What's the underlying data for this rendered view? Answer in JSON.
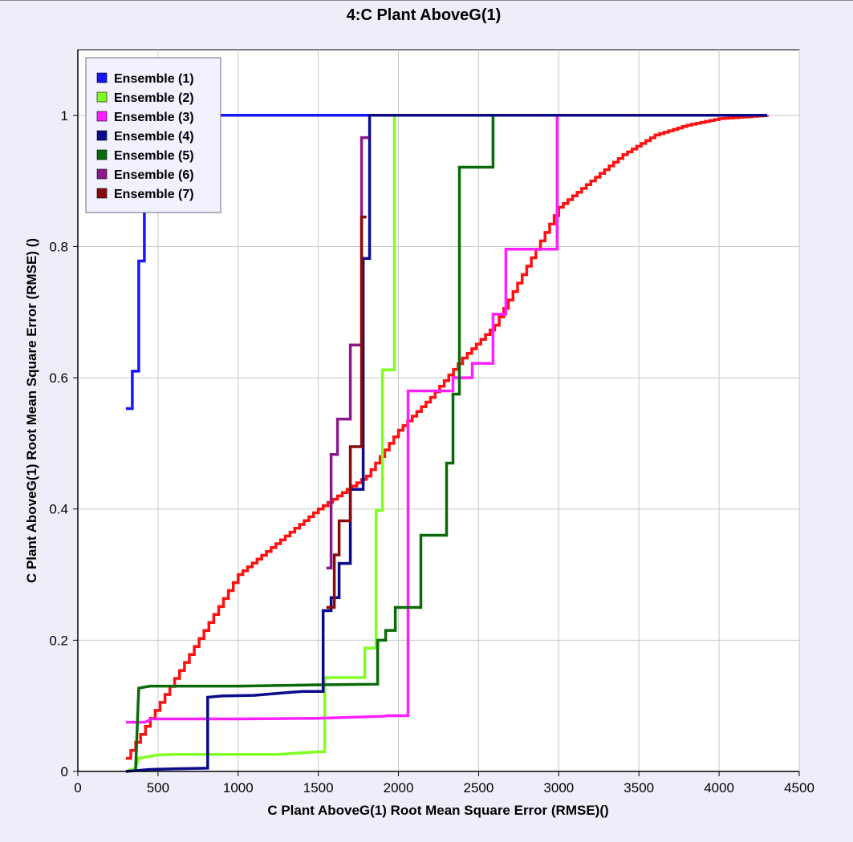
{
  "chart_data": {
    "type": "line",
    "title": "4:C Plant AboveG(1)",
    "xlabel": "C Plant AboveG(1) Root Mean Square Error (RMSE)()",
    "ylabel": "C Plant AboveG(1) Root Mean Square Error (RMSE) ()",
    "xlim": [
      0,
      4500
    ],
    "ylim": [
      0,
      1.1
    ],
    "xticks": [
      "0",
      "500",
      "1000",
      "1500",
      "2000",
      "2500",
      "3000",
      "3500",
      "4000",
      "4500"
    ],
    "yticks": [
      "0",
      "0.2",
      "0.4",
      "0.6",
      "0.8",
      "1"
    ],
    "grid": true,
    "legend_position": "top-left",
    "series": [
      {
        "name": "Ensemble (1)",
        "color": "#1515ff",
        "points": [
          [
            300,
            0.553
          ],
          [
            340,
            0.553
          ],
          [
            340,
            0.61
          ],
          [
            380,
            0.61
          ],
          [
            380,
            0.778
          ],
          [
            415,
            0.778
          ],
          [
            415,
            1.0
          ],
          [
            4300,
            1.0
          ]
        ]
      },
      {
        "name": "Ensemble (2)",
        "color": "#80ff20",
        "points": [
          [
            300,
            0.0
          ],
          [
            360,
            0.005
          ],
          [
            380,
            0.02
          ],
          [
            500,
            0.025
          ],
          [
            600,
            0.026
          ],
          [
            1250,
            0.026
          ],
          [
            1500,
            0.03
          ],
          [
            1540,
            0.03
          ],
          [
            1540,
            0.143
          ],
          [
            1790,
            0.143
          ],
          [
            1790,
            0.188
          ],
          [
            1860,
            0.188
          ],
          [
            1860,
            0.398
          ],
          [
            1900,
            0.398
          ],
          [
            1900,
            0.612
          ],
          [
            1975,
            0.612
          ],
          [
            1975,
            1.0
          ],
          [
            4300,
            1.0
          ]
        ]
      },
      {
        "name": "Ensemble (3)",
        "color": "#ff20ff",
        "points": [
          [
            300,
            0.075
          ],
          [
            420,
            0.075
          ],
          [
            460,
            0.08
          ],
          [
            1000,
            0.08
          ],
          [
            1500,
            0.081
          ],
          [
            1900,
            0.084
          ],
          [
            1940,
            0.085
          ],
          [
            2060,
            0.085
          ],
          [
            2060,
            0.58
          ],
          [
            2340,
            0.58
          ],
          [
            2340,
            0.6
          ],
          [
            2460,
            0.6
          ],
          [
            2460,
            0.622
          ],
          [
            2590,
            0.622
          ],
          [
            2590,
            0.697
          ],
          [
            2670,
            0.697
          ],
          [
            2670,
            0.796
          ],
          [
            2990,
            0.796
          ],
          [
            2990,
            1.0
          ],
          [
            4300,
            1.0
          ]
        ]
      },
      {
        "name": "Ensemble (4)",
        "color": "#0a0a8a",
        "points": [
          [
            300,
            0.0
          ],
          [
            450,
            0.003
          ],
          [
            600,
            0.004
          ],
          [
            810,
            0.005
          ],
          [
            810,
            0.113
          ],
          [
            900,
            0.115
          ],
          [
            1100,
            0.116
          ],
          [
            1300,
            0.12
          ],
          [
            1400,
            0.122
          ],
          [
            1530,
            0.122
          ],
          [
            1530,
            0.245
          ],
          [
            1580,
            0.245
          ],
          [
            1580,
            0.265
          ],
          [
            1630,
            0.265
          ],
          [
            1630,
            0.317
          ],
          [
            1700,
            0.317
          ],
          [
            1700,
            0.43
          ],
          [
            1780,
            0.43
          ],
          [
            1780,
            0.782
          ],
          [
            1820,
            0.782
          ],
          [
            1820,
            1.0
          ],
          [
            4300,
            1.0
          ]
        ]
      },
      {
        "name": "Ensemble (5)",
        "color": "#0a6a0a",
        "points": [
          [
            360,
            0.0
          ],
          [
            380,
            0.127
          ],
          [
            450,
            0.13
          ],
          [
            1000,
            0.13
          ],
          [
            1500,
            0.132
          ],
          [
            1870,
            0.133
          ],
          [
            1870,
            0.2
          ],
          [
            1920,
            0.2
          ],
          [
            1920,
            0.215
          ],
          [
            1980,
            0.215
          ],
          [
            1980,
            0.25
          ],
          [
            2140,
            0.25
          ],
          [
            2140,
            0.36
          ],
          [
            2300,
            0.36
          ],
          [
            2300,
            0.47
          ],
          [
            2340,
            0.47
          ],
          [
            2340,
            0.575
          ],
          [
            2380,
            0.575
          ],
          [
            2380,
            0.921
          ],
          [
            2590,
            0.921
          ],
          [
            2590,
            1.0
          ],
          [
            4300,
            1.0
          ]
        ]
      },
      {
        "name": "Ensemble (6)",
        "color": "#8a1a8a",
        "points": [
          [
            1550,
            0.31
          ],
          [
            1580,
            0.31
          ],
          [
            1580,
            0.483
          ],
          [
            1620,
            0.483
          ],
          [
            1620,
            0.537
          ],
          [
            1700,
            0.537
          ],
          [
            1700,
            0.65
          ],
          [
            1770,
            0.65
          ],
          [
            1770,
            0.966
          ],
          [
            1815,
            0.966
          ]
        ]
      },
      {
        "name": "Ensemble (7)",
        "color": "#8a0a0a",
        "points": [
          [
            1550,
            0.25
          ],
          [
            1600,
            0.25
          ],
          [
            1600,
            0.33
          ],
          [
            1630,
            0.33
          ],
          [
            1630,
            0.382
          ],
          [
            1700,
            0.382
          ],
          [
            1700,
            0.495
          ],
          [
            1770,
            0.495
          ],
          [
            1770,
            0.845
          ],
          [
            1800,
            0.845
          ]
        ]
      },
      {
        "name": "",
        "color": "#ff1010",
        "points": [
          [
            300,
            0.02
          ],
          [
            1000,
            0.3
          ],
          [
            1500,
            0.4
          ],
          [
            1800,
            0.45
          ],
          [
            2000,
            0.52
          ],
          [
            2200,
            0.57
          ],
          [
            2400,
            0.63
          ],
          [
            2600,
            0.68
          ],
          [
            2800,
            0.77
          ],
          [
            3000,
            0.86
          ],
          [
            3200,
            0.9
          ],
          [
            3400,
            0.94
          ],
          [
            3600,
            0.97
          ],
          [
            3800,
            0.985
          ],
          [
            4000,
            0.995
          ],
          [
            4300,
            1.0
          ]
        ]
      }
    ]
  }
}
